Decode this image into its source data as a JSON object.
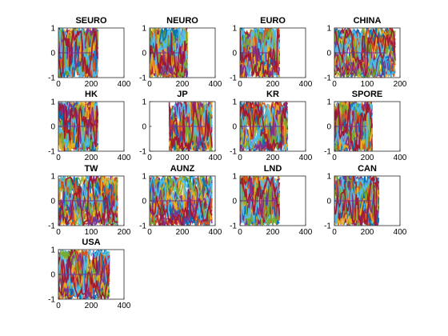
{
  "figure": {
    "background": "#ffffff",
    "palette": [
      "#0072BD",
      "#D95319",
      "#EDB120",
      "#7E2F8E",
      "#77AC30",
      "#4DBEEE",
      "#A2142F"
    ]
  },
  "chart_data": [
    {
      "type": "line",
      "title": "SEURO",
      "n_obs": 240,
      "xlim": [
        0,
        400
      ],
      "ylim": [
        -1,
        1
      ],
      "xticks": [
        "0",
        "200",
        "400"
      ],
      "yticks": [
        "-1",
        "0",
        "1"
      ],
      "grid": false
    },
    {
      "type": "line",
      "title": "NEURO",
      "n_obs": 230,
      "xlim": [
        0,
        400
      ],
      "ylim": [
        -1,
        1
      ],
      "xticks": [
        "0",
        "200",
        "400"
      ],
      "yticks": [
        "-1",
        "0",
        "1"
      ],
      "grid": false
    },
    {
      "type": "line",
      "title": "EURO",
      "n_obs": 240,
      "xlim": [
        0,
        400
      ],
      "ylim": [
        -1,
        1
      ],
      "xticks": [
        "0",
        "200",
        "400"
      ],
      "yticks": [
        "-1",
        "0",
        "1"
      ],
      "grid": false
    },
    {
      "type": "line",
      "title": "CHINA",
      "n_obs": 185,
      "xlim": [
        0,
        200
      ],
      "ylim": [
        -1,
        1
      ],
      "xticks": [
        "0",
        "100",
        "200"
      ],
      "yticks": [
        "-1",
        "0",
        "1"
      ],
      "grid": false
    },
    {
      "type": "line",
      "title": "HK",
      "n_obs": 240,
      "xlim": [
        0,
        400
      ],
      "ylim": [
        -1,
        1
      ],
      "xticks": [
        "0",
        "200",
        "400"
      ],
      "yticks": [
        "-1",
        "0",
        "1"
      ],
      "grid": false
    },
    {
      "type": "line",
      "title": "JP",
      "n_obs": 380,
      "x_start": 120,
      "xlim": [
        0,
        400
      ],
      "ylim": [
        -1,
        1
      ],
      "xticks": [
        "0",
        "200",
        "400"
      ],
      "yticks": [
        "-1",
        "0",
        "1"
      ],
      "grid": false
    },
    {
      "type": "line",
      "title": "KR",
      "n_obs": 290,
      "xlim": [
        0,
        400
      ],
      "ylim": [
        -1,
        1
      ],
      "xticks": [
        "0",
        "200",
        "400"
      ],
      "yticks": [
        "-1",
        "0",
        "1"
      ],
      "grid": false
    },
    {
      "type": "line",
      "title": "SPORE",
      "n_obs": 230,
      "xlim": [
        0,
        400
      ],
      "ylim": [
        -1,
        1
      ],
      "xticks": [
        "0",
        "200",
        "400"
      ],
      "yticks": [
        "-1",
        "0",
        "1"
      ],
      "grid": false
    },
    {
      "type": "line",
      "title": "TW",
      "n_obs": 180,
      "xlim": [
        0,
        200
      ],
      "ylim": [
        -1,
        1
      ],
      "xticks": [
        "0",
        "100",
        "200"
      ],
      "yticks": [
        "-1",
        "0",
        "1"
      ],
      "grid": false
    },
    {
      "type": "line",
      "title": "AUNZ",
      "n_obs": 380,
      "xlim": [
        0,
        400
      ],
      "ylim": [
        -1,
        1
      ],
      "xticks": [
        "0",
        "200",
        "400"
      ],
      "yticks": [
        "-1",
        "0",
        "1"
      ],
      "grid": false
    },
    {
      "type": "line",
      "title": "LND",
      "n_obs": 240,
      "xlim": [
        0,
        400
      ],
      "ylim": [
        -1,
        1
      ],
      "xticks": [
        "0",
        "200",
        "400"
      ],
      "yticks": [
        "-1",
        "0",
        "1"
      ],
      "grid": false
    },
    {
      "type": "line",
      "title": "CAN",
      "n_obs": 270,
      "xlim": [
        0,
        400
      ],
      "ylim": [
        -1,
        1
      ],
      "xticks": [
        "0",
        "200",
        "400"
      ],
      "yticks": [
        "-1",
        "0",
        "1"
      ],
      "grid": false
    },
    {
      "type": "line",
      "title": "USA",
      "n_obs": 310,
      "xlim": [
        0,
        400
      ],
      "ylim": [
        -1,
        1
      ],
      "xticks": [
        "0",
        "200",
        "400"
      ],
      "yticks": [
        "-1",
        "0",
        "1"
      ],
      "grid": false
    }
  ]
}
